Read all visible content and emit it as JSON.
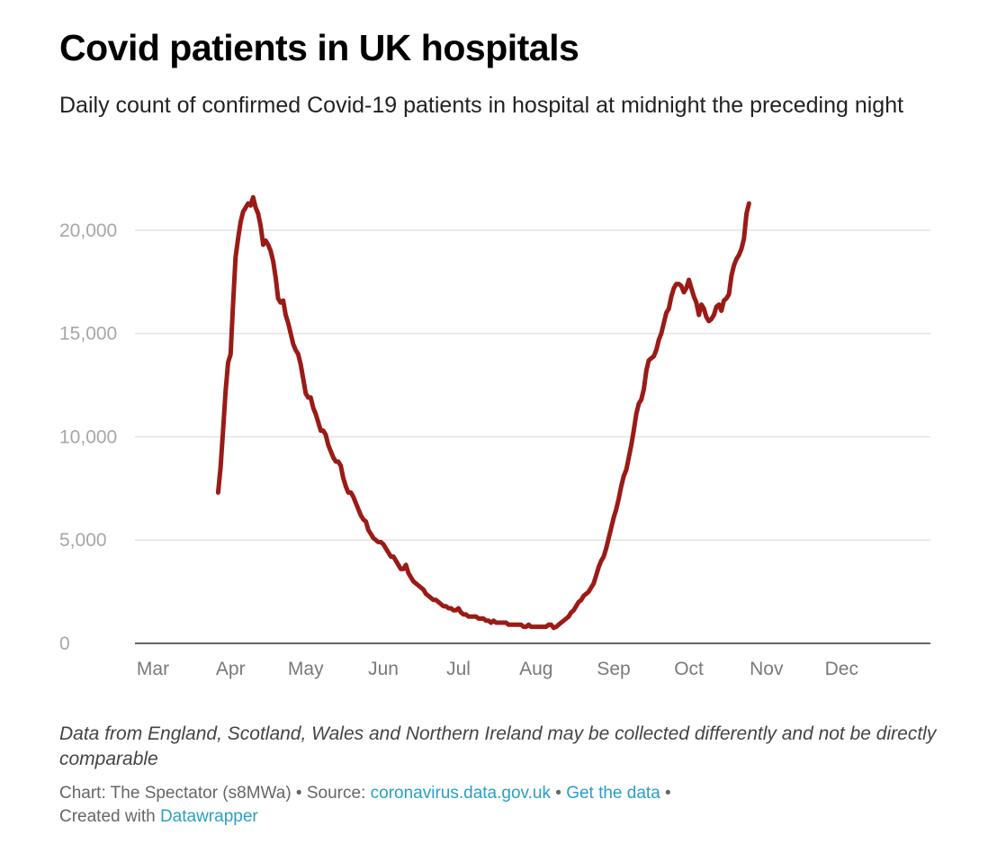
{
  "header": {
    "title": "Covid patients in UK hospitals",
    "subtitle": "Daily count of confirmed Covid-19 patients in hospital at midnight the preceding night"
  },
  "chart_data": {
    "type": "line",
    "title": "Covid patients in UK hospitals",
    "xlabel": "",
    "ylabel": "",
    "ylim": [
      0,
      22000
    ],
    "grid": true,
    "line_color": "#9a1b16",
    "y_ticks": [
      {
        "value": 0,
        "label": "0"
      },
      {
        "value": 5000,
        "label": "5,000"
      },
      {
        "value": 10000,
        "label": "10,000"
      },
      {
        "value": 15000,
        "label": "15,000"
      },
      {
        "value": 20000,
        "label": "20,000"
      }
    ],
    "x_ticks": [
      {
        "day": 0,
        "label": "Mar"
      },
      {
        "day": 31,
        "label": "Apr"
      },
      {
        "day": 61,
        "label": "May"
      },
      {
        "day": 92,
        "label": "Jun"
      },
      {
        "day": 122,
        "label": "Jul"
      },
      {
        "day": 153,
        "label": "Aug"
      },
      {
        "day": 184,
        "label": "Sep"
      },
      {
        "day": 214,
        "label": "Oct"
      },
      {
        "day": 245,
        "label": "Nov"
      },
      {
        "day": 275,
        "label": "Dec"
      }
    ],
    "x_unit": "days since 1 March 2020",
    "series": [
      {
        "name": "Confirmed Covid-19 patients in hospital",
        "points": [
          [
            26,
            7300
          ],
          [
            27,
            8500
          ],
          [
            28,
            10300
          ],
          [
            29,
            12200
          ],
          [
            30,
            13600
          ],
          [
            31,
            14000
          ],
          [
            32,
            16500
          ],
          [
            33,
            18700
          ],
          [
            34,
            19600
          ],
          [
            35,
            20400
          ],
          [
            36,
            20900
          ],
          [
            37,
            21100
          ],
          [
            38,
            21300
          ],
          [
            39,
            21200
          ],
          [
            40,
            21600
          ],
          [
            41,
            21100
          ],
          [
            42,
            20800
          ],
          [
            43,
            20200
          ],
          [
            44,
            19300
          ],
          [
            45,
            19500
          ],
          [
            46,
            19300
          ],
          [
            47,
            19000
          ],
          [
            48,
            18500
          ],
          [
            49,
            17700
          ],
          [
            50,
            16700
          ],
          [
            51,
            16500
          ],
          [
            52,
            16600
          ],
          [
            53,
            15900
          ],
          [
            54,
            15500
          ],
          [
            55,
            15000
          ],
          [
            56,
            14500
          ],
          [
            57,
            14200
          ],
          [
            58,
            14000
          ],
          [
            59,
            13500
          ],
          [
            60,
            12800
          ],
          [
            61,
            12100
          ],
          [
            62,
            11900
          ],
          [
            63,
            11900
          ],
          [
            64,
            11400
          ],
          [
            65,
            11100
          ],
          [
            66,
            10700
          ],
          [
            67,
            10300
          ],
          [
            68,
            10300
          ],
          [
            69,
            10100
          ],
          [
            70,
            9600
          ],
          [
            71,
            9300
          ],
          [
            72,
            9000
          ],
          [
            73,
            8800
          ],
          [
            74,
            8800
          ],
          [
            75,
            8600
          ],
          [
            76,
            8000
          ],
          [
            77,
            7600
          ],
          [
            78,
            7300
          ],
          [
            79,
            7300
          ],
          [
            80,
            7100
          ],
          [
            81,
            6800
          ],
          [
            82,
            6500
          ],
          [
            83,
            6200
          ],
          [
            84,
            6000
          ],
          [
            85,
            5900
          ],
          [
            86,
            5500
          ],
          [
            87,
            5300
          ],
          [
            88,
            5100
          ],
          [
            89,
            5000
          ],
          [
            90,
            4900
          ],
          [
            91,
            4900
          ],
          [
            92,
            4800
          ],
          [
            93,
            4600
          ],
          [
            94,
            4400
          ],
          [
            95,
            4200
          ],
          [
            96,
            4200
          ],
          [
            97,
            4000
          ],
          [
            98,
            3800
          ],
          [
            99,
            3600
          ],
          [
            100,
            3600
          ],
          [
            101,
            3800
          ],
          [
            102,
            3400
          ],
          [
            103,
            3200
          ],
          [
            104,
            3000
          ],
          [
            105,
            2900
          ],
          [
            106,
            2800
          ],
          [
            107,
            2700
          ],
          [
            108,
            2600
          ],
          [
            109,
            2400
          ],
          [
            110,
            2300
          ],
          [
            111,
            2200
          ],
          [
            112,
            2100
          ],
          [
            113,
            2100
          ],
          [
            114,
            2000
          ],
          [
            115,
            1900
          ],
          [
            116,
            1800
          ],
          [
            117,
            1800
          ],
          [
            118,
            1700
          ],
          [
            119,
            1700
          ],
          [
            120,
            1600
          ],
          [
            121,
            1600
          ],
          [
            122,
            1700
          ],
          [
            123,
            1500
          ],
          [
            124,
            1400
          ],
          [
            125,
            1400
          ],
          [
            126,
            1300
          ],
          [
            127,
            1300
          ],
          [
            128,
            1300
          ],
          [
            129,
            1300
          ],
          [
            130,
            1200
          ],
          [
            131,
            1200
          ],
          [
            132,
            1200
          ],
          [
            133,
            1100
          ],
          [
            134,
            1100
          ],
          [
            135,
            1000
          ],
          [
            136,
            1100
          ],
          [
            137,
            1000
          ],
          [
            138,
            1000
          ],
          [
            139,
            1000
          ],
          [
            140,
            1000
          ],
          [
            141,
            1000
          ],
          [
            142,
            900
          ],
          [
            143,
            900
          ],
          [
            144,
            900
          ],
          [
            145,
            900
          ],
          [
            146,
            900
          ],
          [
            147,
            900
          ],
          [
            148,
            800
          ],
          [
            149,
            800
          ],
          [
            150,
            900
          ],
          [
            151,
            800
          ],
          [
            152,
            800
          ],
          [
            153,
            800
          ],
          [
            154,
            800
          ],
          [
            155,
            800
          ],
          [
            156,
            800
          ],
          [
            157,
            800
          ],
          [
            158,
            900
          ],
          [
            159,
            900
          ],
          [
            160,
            750
          ],
          [
            161,
            800
          ],
          [
            162,
            900
          ],
          [
            163,
            1000
          ],
          [
            164,
            1100
          ],
          [
            165,
            1200
          ],
          [
            166,
            1300
          ],
          [
            167,
            1500
          ],
          [
            168,
            1600
          ],
          [
            169,
            1800
          ],
          [
            170,
            2000
          ],
          [
            171,
            2100
          ],
          [
            172,
            2300
          ],
          [
            173,
            2400
          ],
          [
            174,
            2500
          ],
          [
            175,
            2700
          ],
          [
            176,
            2900
          ],
          [
            177,
            3300
          ],
          [
            178,
            3700
          ],
          [
            179,
            4000
          ],
          [
            180,
            4200
          ],
          [
            181,
            4600
          ],
          [
            182,
            5100
          ],
          [
            183,
            5600
          ],
          [
            184,
            6100
          ],
          [
            185,
            6500
          ],
          [
            186,
            7000
          ],
          [
            187,
            7600
          ],
          [
            188,
            8100
          ],
          [
            189,
            8400
          ],
          [
            190,
            9000
          ],
          [
            191,
            9600
          ],
          [
            192,
            10300
          ],
          [
            193,
            11100
          ],
          [
            194,
            11600
          ],
          [
            195,
            11800
          ],
          [
            196,
            12300
          ],
          [
            197,
            13200
          ],
          [
            198,
            13700
          ],
          [
            199,
            13800
          ],
          [
            200,
            13900
          ],
          [
            201,
            14200
          ],
          [
            202,
            14700
          ],
          [
            203,
            15000
          ],
          [
            204,
            15500
          ],
          [
            205,
            16000
          ],
          [
            206,
            16200
          ],
          [
            207,
            16800
          ],
          [
            208,
            17200
          ],
          [
            209,
            17400
          ],
          [
            210,
            17400
          ],
          [
            211,
            17300
          ],
          [
            212,
            17000
          ],
          [
            213,
            17200
          ],
          [
            214,
            17600
          ],
          [
            215,
            17200
          ],
          [
            216,
            16800
          ],
          [
            217,
            16500
          ],
          [
            218,
            15900
          ],
          [
            219,
            16400
          ],
          [
            220,
            16200
          ],
          [
            221,
            15800
          ],
          [
            222,
            15600
          ],
          [
            223,
            15700
          ],
          [
            224,
            15900
          ],
          [
            225,
            16300
          ],
          [
            226,
            16400
          ],
          [
            227,
            16100
          ],
          [
            228,
            16600
          ],
          [
            229,
            16700
          ],
          [
            230,
            16900
          ],
          [
            231,
            17800
          ],
          [
            232,
            18300
          ],
          [
            233,
            18600
          ],
          [
            234,
            18800
          ],
          [
            235,
            19100
          ],
          [
            236,
            19600
          ],
          [
            237,
            20800
          ],
          [
            238,
            21300
          ]
        ]
      }
    ]
  },
  "footer": {
    "note": "Data from England, Scotland, Wales and Northern Ireland may be collected differently and not be directly comparable",
    "chart_credit": "Chart: The Spectator (s8MWa)",
    "separator": " • ",
    "source_label": "Source: ",
    "source_link": "coronavirus.data.gov.uk",
    "get_data_link": "Get the data",
    "created_label": "Created with ",
    "datawrapper_link": "Datawrapper"
  }
}
